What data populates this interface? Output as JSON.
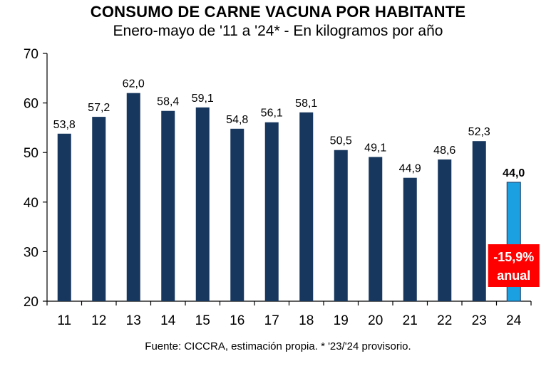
{
  "chart_data": {
    "type": "bar",
    "title": "CONSUMO DE CARNE VACUNA POR HABITANTE",
    "subtitle": "Enero-mayo de '11 a '24* - En kilogramos por año",
    "categories": [
      "11",
      "12",
      "13",
      "14",
      "15",
      "16",
      "17",
      "18",
      "19",
      "20",
      "21",
      "22",
      "23",
      "24"
    ],
    "values": [
      53.8,
      57.2,
      62.0,
      58.4,
      59.1,
      54.8,
      56.1,
      58.1,
      50.5,
      49.1,
      44.9,
      48.6,
      52.3,
      44.0
    ],
    "data_labels": [
      "53,8",
      "57,2",
      "62,0",
      "58,4",
      "59,1",
      "54,8",
      "56,1",
      "58,1",
      "50,5",
      "49,1",
      "44,9",
      "48,6",
      "52,3",
      "44,0"
    ],
    "ylim": [
      20,
      70
    ],
    "yticks": [
      20,
      30,
      40,
      50,
      60,
      70
    ],
    "grid": false,
    "colors": {
      "bar": "#17375e",
      "highlight": "#1ba1e2",
      "badge": "#ff0000"
    },
    "highlight_index": 13,
    "annotation": {
      "line1": "-15,9%",
      "line2": "anual"
    },
    "source": "Fuente: CICCRA, estimación propia. * '23/'24 provisorio."
  }
}
